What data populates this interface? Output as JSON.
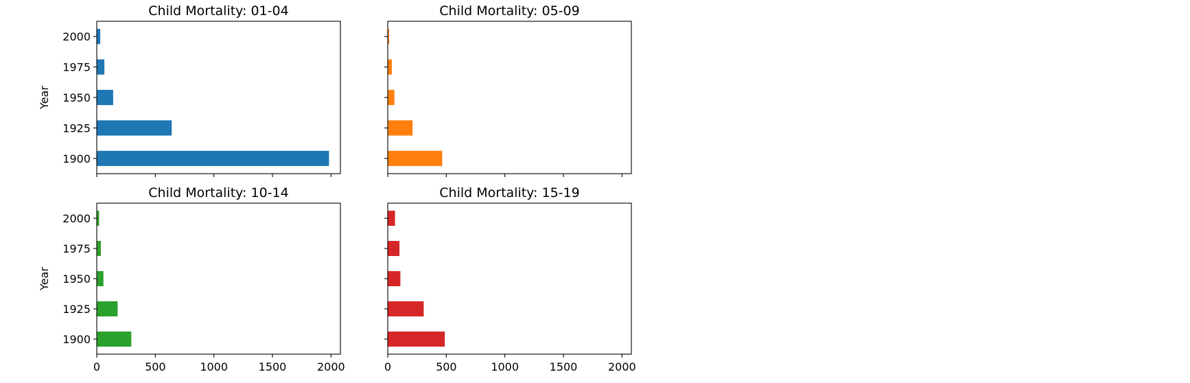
{
  "chart_data": [
    {
      "type": "bar",
      "orientation": "horizontal",
      "title": "Child Mortality: 01-04",
      "ylabel": "Year",
      "xlabel": "",
      "categories": [
        "1900",
        "1925",
        "1950",
        "1975",
        "2000"
      ],
      "values": [
        1983,
        640,
        140,
        65,
        30
      ],
      "color": "#1f77b4",
      "xlim": [
        0,
        2080
      ],
      "xticks": [
        "0",
        "500",
        "1000",
        "1500",
        "2000"
      ],
      "xtick_labels_shown": false,
      "ytick_labels_shown": true
    },
    {
      "type": "bar",
      "orientation": "horizontal",
      "title": "Child Mortality: 05-09",
      "ylabel": "",
      "xlabel": "",
      "categories": [
        "1900",
        "1925",
        "1950",
        "1975",
        "2000"
      ],
      "values": [
        465,
        212,
        57,
        35,
        12
      ],
      "color": "#ff7f0e",
      "xlim": [
        0,
        2080
      ],
      "xticks": [
        "0",
        "500",
        "1000",
        "1500",
        "2000"
      ],
      "xtick_labels_shown": false,
      "ytick_labels_shown": false
    },
    {
      "type": "bar",
      "orientation": "horizontal",
      "title": "Child Mortality: 10-14",
      "ylabel": "Year",
      "xlabel": "",
      "categories": [
        "1900",
        "1925",
        "1950",
        "1975",
        "2000"
      ],
      "values": [
        295,
        178,
        57,
        35,
        20
      ],
      "color": "#2ca02c",
      "xlim": [
        0,
        2080
      ],
      "xticks": [
        "0",
        "500",
        "1000",
        "1500",
        "2000"
      ],
      "xtick_labels_shown": true,
      "ytick_labels_shown": true
    },
    {
      "type": "bar",
      "orientation": "horizontal",
      "title": "Child Mortality: 15-19",
      "ylabel": "",
      "xlabel": "",
      "categories": [
        "1900",
        "1925",
        "1950",
        "1975",
        "2000"
      ],
      "values": [
        487,
        307,
        108,
        100,
        62
      ],
      "color": "#d62728",
      "xlim": [
        0,
        2080
      ],
      "xticks": [
        "0",
        "500",
        "1000",
        "1500",
        "2000"
      ],
      "xtick_labels_shown": true,
      "ytick_labels_shown": false
    }
  ]
}
